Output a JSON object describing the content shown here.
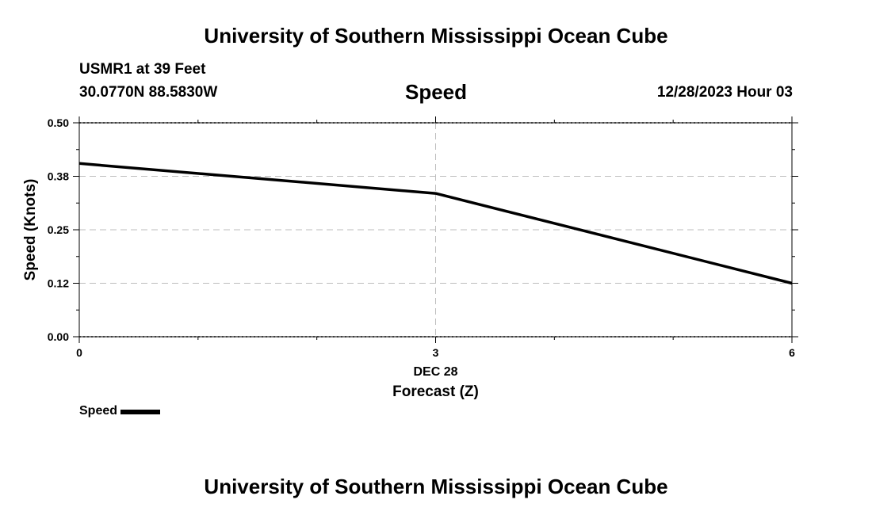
{
  "header": {
    "title": "University of Southern Mississippi Ocean Cube",
    "station": "USMR1 at 39 Feet",
    "coordinates": "30.0770N  88.5830W",
    "chart_title": "Speed",
    "datetime": "12/28/2023 Hour 03"
  },
  "footer": {
    "title": "University of Southern Mississippi Ocean Cube"
  },
  "legend": {
    "label": "Speed",
    "color": "#000000"
  },
  "chart_data": {
    "type": "line",
    "title": "Speed",
    "xlabel": "Forecast (Z)",
    "ylabel": "Speed (Knots)",
    "x_date_label": "DEC 28",
    "xlim": [
      0,
      6
    ],
    "ylim": [
      0,
      0.5
    ],
    "x_ticks": [
      0,
      3,
      6
    ],
    "x_tick_labels": [
      "0",
      "3",
      "6"
    ],
    "y_ticks": [
      0,
      0.125,
      0.25,
      0.375,
      0.5
    ],
    "y_tick_labels": [
      "0.00",
      "0.12",
      "0.25",
      "0.38",
      "0.50"
    ],
    "grid": true,
    "series": [
      {
        "name": "Speed",
        "color": "#000000",
        "x": [
          0,
          3,
          6
        ],
        "values": [
          0.405,
          0.335,
          0.125
        ]
      }
    ]
  }
}
